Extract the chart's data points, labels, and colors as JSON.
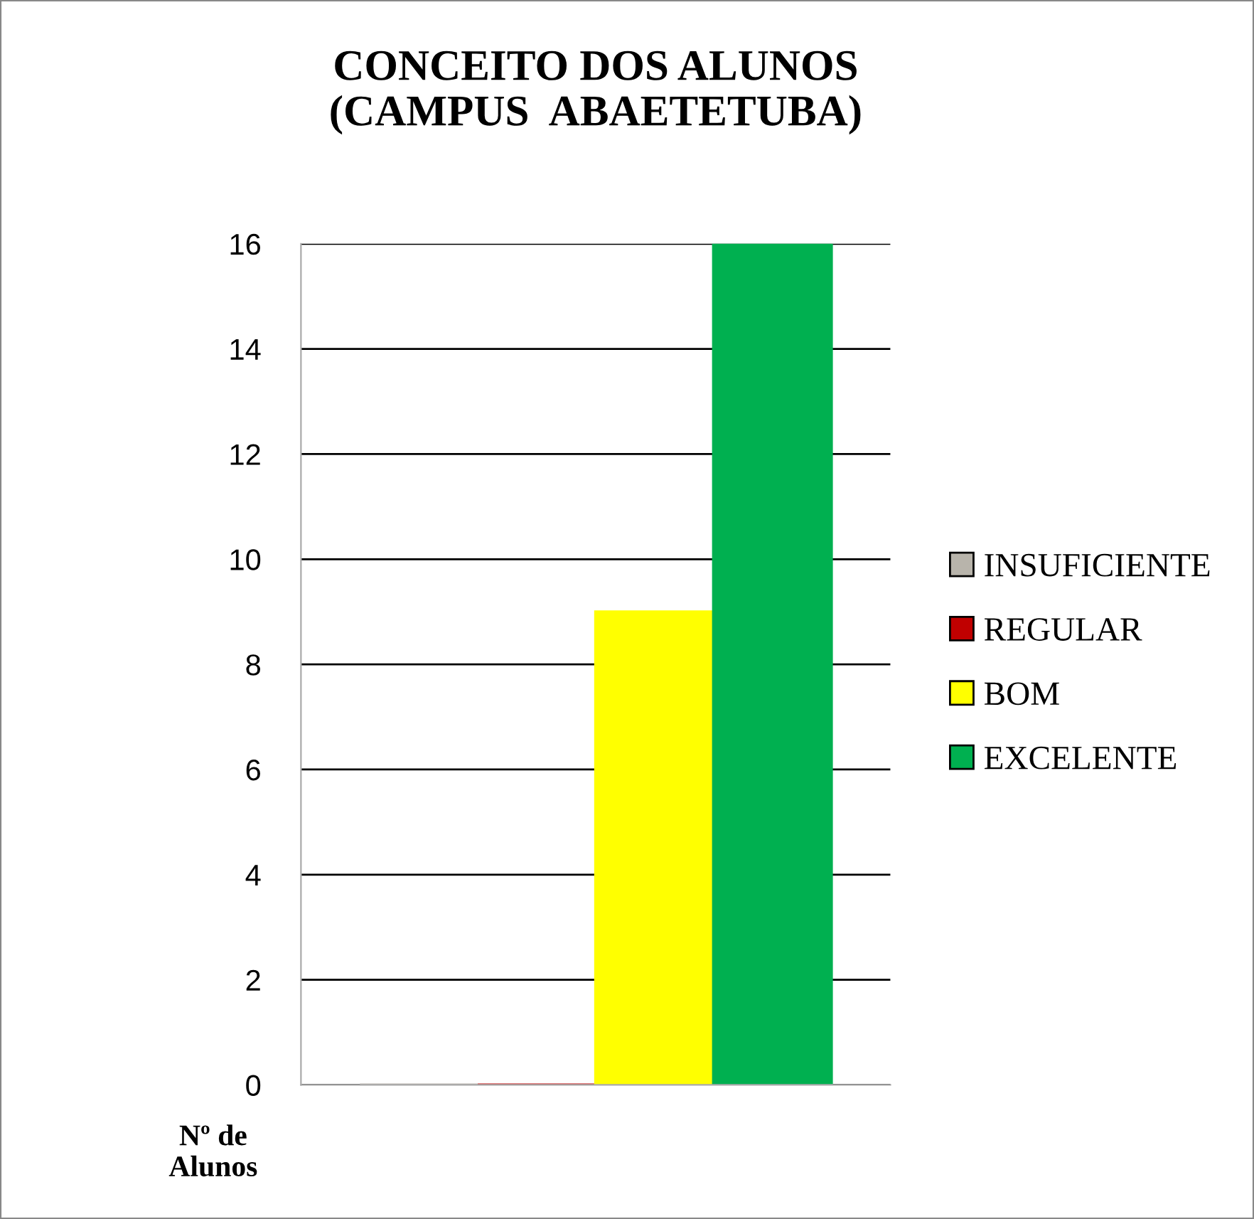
{
  "chart_data": {
    "type": "bar",
    "title": "CONCEITO DOS ALUNOS\n(CAMPUS  ABAETETUBA)",
    "ylabel": "Nº de\nAlunos",
    "categories": [
      null
    ],
    "series": [
      {
        "name": "INSUFICIENTE",
        "color": "#b8b4ab",
        "values": [
          0
        ]
      },
      {
        "name": "REGULAR",
        "color": "#c00000",
        "values": [
          0
        ]
      },
      {
        "name": "BOM",
        "color": "#ffff00",
        "values": [
          9
        ]
      },
      {
        "name": "EXCELENTE",
        "color": "#00b050",
        "values": [
          16
        ]
      }
    ],
    "ylim": [
      0,
      16
    ],
    "yticks": [
      0,
      2,
      4,
      6,
      8,
      10,
      12,
      14,
      16
    ],
    "grid": "y",
    "legend": "right"
  }
}
